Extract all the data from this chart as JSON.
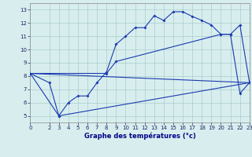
{
  "xlabel": "Graphe des températures (°c)",
  "bg_color": "#d8eeee",
  "grid_color": "#aacccc",
  "line_color": "#1a3ab0",
  "line1_x": [
    0,
    2,
    3,
    4,
    5,
    6,
    7,
    8,
    9,
    10,
    11,
    12,
    13,
    14,
    15,
    16,
    17,
    18,
    19,
    20,
    21,
    22,
    23
  ],
  "line1_y": [
    8.2,
    7.5,
    5.0,
    6.0,
    6.5,
    6.5,
    7.5,
    8.3,
    10.4,
    11.0,
    11.65,
    11.65,
    12.55,
    12.2,
    12.85,
    12.85,
    12.5,
    12.2,
    11.85,
    11.15,
    11.15,
    6.7,
    7.5
  ],
  "line2_x": [
    0,
    8,
    9,
    20,
    21,
    22,
    23
  ],
  "line2_y": [
    8.2,
    8.2,
    9.1,
    11.15,
    11.15,
    11.85,
    7.5
  ],
  "line3_x": [
    0,
    3,
    23
  ],
  "line3_y": [
    8.2,
    5.0,
    7.5
  ],
  "line4_x": [
    0,
    23
  ],
  "line4_y": [
    8.2,
    7.5
  ],
  "xlim": [
    0,
    23
  ],
  "ylim": [
    4.5,
    13.5
  ],
  "yticks": [
    5,
    6,
    7,
    8,
    9,
    10,
    11,
    12,
    13
  ],
  "xticks": [
    0,
    2,
    3,
    4,
    5,
    6,
    7,
    8,
    9,
    10,
    11,
    12,
    13,
    14,
    15,
    16,
    17,
    18,
    19,
    20,
    21,
    22,
    23
  ],
  "tick_fontsize": 5.0,
  "xlabel_fontsize": 6.0
}
